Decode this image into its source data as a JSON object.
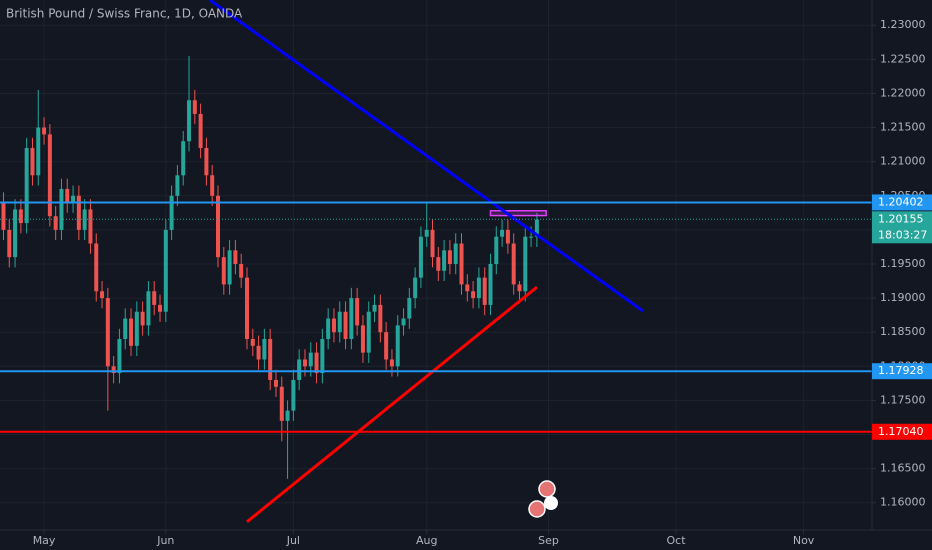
{
  "chart_data": {
    "type": "candlestick",
    "title": "British Pound / Swiss Franc, 1D, OANDA",
    "up_color": "#26a69a",
    "down_color": "#ef5350",
    "grid": true,
    "x": [
      -7,
      -6,
      -5,
      -4,
      -3,
      -2,
      -1,
      0,
      1,
      2,
      3,
      4,
      5,
      6,
      7,
      8,
      9,
      10,
      11,
      12,
      13,
      14,
      15,
      16,
      17,
      18,
      19,
      20,
      21,
      22,
      23,
      24,
      25,
      26,
      27,
      28,
      29,
      30,
      31,
      32,
      33,
      34,
      35,
      36,
      37,
      38,
      39,
      40,
      41,
      42,
      43,
      44,
      45,
      46,
      47,
      48,
      49,
      50,
      51,
      52,
      53,
      54,
      55,
      56,
      57,
      58,
      59,
      60,
      61,
      62,
      63,
      64,
      65,
      66,
      67,
      68,
      69,
      70,
      71,
      72,
      73,
      74,
      75,
      76,
      77,
      78,
      79,
      80,
      81,
      82,
      83,
      84,
      85
    ],
    "open": [
      1.204,
      1.2,
      1.196,
      1.203,
      1.201,
      1.212,
      1.208,
      1.215,
      1.214,
      1.202,
      1.2,
      1.206,
      1.204,
      1.205,
      1.2,
      1.203,
      1.198,
      1.191,
      1.19,
      1.18,
      1.179,
      1.184,
      1.187,
      1.183,
      1.188,
      1.186,
      1.191,
      1.189,
      1.188,
      1.2,
      1.205,
      1.208,
      1.213,
      1.219,
      1.217,
      1.212,
      1.208,
      1.205,
      1.196,
      1.192,
      1.197,
      1.195,
      1.193,
      1.184,
      1.183,
      1.181,
      1.184,
      1.178,
      1.177,
      1.172,
      1.1735,
      1.178,
      1.181,
      1.18,
      1.182,
      1.179,
      1.184,
      1.187,
      1.185,
      1.188,
      1.184,
      1.19,
      1.186,
      1.182,
      1.188,
      1.189,
      1.185,
      1.181,
      1.18,
      1.186,
      1.187,
      1.19,
      1.193,
      1.199,
      1.2,
      1.196,
      1.194,
      1.197,
      1.195,
      1.198,
      1.192,
      1.191,
      1.19,
      1.193,
      1.189,
      1.195,
      1.199,
      1.2,
      1.198,
      1.192,
      1.191,
      1.199,
      1.199
    ],
    "high": [
      1.2055,
      1.2015,
      1.2045,
      1.2045,
      1.2135,
      1.2135,
      1.2205,
      1.2165,
      1.2155,
      1.2035,
      1.2075,
      1.2075,
      1.2065,
      1.2065,
      1.2045,
      1.2045,
      1.1995,
      1.1925,
      1.1915,
      1.1815,
      1.1855,
      1.1885,
      1.1885,
      1.1895,
      1.1895,
      1.1925,
      1.1925,
      1.1905,
      1.2015,
      1.2065,
      1.2095,
      1.2145,
      1.2255,
      1.2205,
      1.2185,
      1.2135,
      1.2095,
      1.2065,
      1.1975,
      1.1985,
      1.1985,
      1.1965,
      1.1945,
      1.1855,
      1.1845,
      1.1855,
      1.1855,
      1.1795,
      1.1785,
      1.175,
      1.1795,
      1.1825,
      1.1825,
      1.1835,
      1.1835,
      1.1855,
      1.1885,
      1.1885,
      1.1895,
      1.1895,
      1.1915,
      1.1915,
      1.1875,
      1.1895,
      1.1905,
      1.1905,
      1.1865,
      1.1825,
      1.1875,
      1.1885,
      1.1915,
      1.1945,
      1.2005,
      1.204,
      1.2015,
      1.1975,
      1.1985,
      1.1985,
      1.1995,
      1.1995,
      1.1935,
      1.1925,
      1.1945,
      1.1945,
      1.1965,
      1.2005,
      1.2015,
      1.2015,
      1.1995,
      1.1925,
      1.2005,
      1.2005,
      1.2025
    ],
    "low": [
      1.1985,
      1.1945,
      1.1945,
      1.1995,
      1.1995,
      1.2065,
      1.2065,
      1.2125,
      1.2005,
      1.1985,
      1.1985,
      1.2025,
      1.2025,
      1.1985,
      1.1985,
      1.1965,
      1.1895,
      1.1885,
      1.1735,
      1.1775,
      1.1775,
      1.1825,
      1.1815,
      1.1815,
      1.1845,
      1.1845,
      1.1875,
      1.1865,
      1.1865,
      1.1985,
      1.2035,
      1.2065,
      1.2115,
      1.2155,
      1.2105,
      1.2065,
      1.2035,
      1.1945,
      1.1905,
      1.1905,
      1.1935,
      1.1915,
      1.1825,
      1.1815,
      1.1795,
      1.1795,
      1.1765,
      1.1755,
      1.169,
      1.1635,
      1.172,
      1.1765,
      1.1785,
      1.1785,
      1.1775,
      1.1775,
      1.1825,
      1.1835,
      1.1835,
      1.1825,
      1.1825,
      1.1845,
      1.1805,
      1.1805,
      1.1865,
      1.1835,
      1.1795,
      1.1785,
      1.1785,
      1.1845,
      1.1855,
      1.1885,
      1.1915,
      1.1975,
      1.1945,
      1.1925,
      1.1925,
      1.1935,
      1.1935,
      1.1905,
      1.1895,
      1.1885,
      1.1885,
      1.1875,
      1.1875,
      1.1935,
      1.1975,
      1.1965,
      1.1905,
      1.1895,
      1.1895,
      1.1975,
      1.1975
    ],
    "close": [
      1.2,
      1.196,
      1.203,
      1.201,
      1.212,
      1.208,
      1.215,
      1.214,
      1.202,
      1.2,
      1.206,
      1.204,
      1.205,
      1.2,
      1.203,
      1.198,
      1.191,
      1.19,
      1.18,
      1.179,
      1.184,
      1.187,
      1.183,
      1.188,
      1.186,
      1.191,
      1.189,
      1.188,
      1.2,
      1.205,
      1.208,
      1.213,
      1.219,
      1.217,
      1.212,
      1.208,
      1.205,
      1.196,
      1.192,
      1.197,
      1.195,
      1.193,
      1.184,
      1.183,
      1.181,
      1.184,
      1.178,
      1.177,
      1.172,
      1.1735,
      1.178,
      1.181,
      1.18,
      1.182,
      1.179,
      1.184,
      1.187,
      1.185,
      1.188,
      1.184,
      1.19,
      1.186,
      1.182,
      1.188,
      1.189,
      1.185,
      1.181,
      1.18,
      1.186,
      1.187,
      1.19,
      1.193,
      1.199,
      1.2,
      1.196,
      1.194,
      1.197,
      1.195,
      1.198,
      1.192,
      1.191,
      1.19,
      1.193,
      1.189,
      1.195,
      1.199,
      1.2,
      1.198,
      1.192,
      1.191,
      1.199,
      1.199,
      1.2015
    ],
    "xlim": [
      -7.6,
      142.8
    ],
    "xticks": [
      {
        "value": 0,
        "label": "May"
      },
      {
        "value": 21,
        "label": "Jun"
      },
      {
        "value": 43,
        "label": "Jul"
      },
      {
        "value": 66,
        "label": "Aug"
      },
      {
        "value": 87,
        "label": "Sep"
      },
      {
        "value": 109,
        "label": "Oct"
      },
      {
        "value": 131,
        "label": "Nov"
      }
    ],
    "ylim": [
      1.156,
      1.2337
    ],
    "yticks": [
      {
        "value": 1.16,
        "label": "1.16000"
      },
      {
        "value": 1.165,
        "label": "1.16500"
      },
      {
        "value": 1.17,
        "label": "1.17000"
      },
      {
        "value": 1.175,
        "label": "1.17500"
      },
      {
        "value": 1.18,
        "label": "1.18000"
      },
      {
        "value": 1.185,
        "label": "1.18500"
      },
      {
        "value": 1.19,
        "label": "1.19000"
      },
      {
        "value": 1.195,
        "label": "1.19500"
      },
      {
        "value": 1.2,
        "label": "1.20000"
      },
      {
        "value": 1.205,
        "label": "1.20500"
      },
      {
        "value": 1.21,
        "label": "1.21000"
      },
      {
        "value": 1.215,
        "label": "1.21500"
      },
      {
        "value": 1.22,
        "label": "1.22000"
      },
      {
        "value": 1.225,
        "label": "1.22500"
      },
      {
        "value": 1.23,
        "label": "1.23000"
      }
    ],
    "hlines": [
      {
        "value": 1.20402,
        "label": "1.20402",
        "color": "#2196f3"
      },
      {
        "value": 1.17928,
        "label": "1.17928",
        "color": "#2196f3"
      },
      {
        "value": 1.1704,
        "label": "1.17040",
        "color": "#ff0000"
      }
    ],
    "trendlines": [
      {
        "x": [
          28.6,
          103.3
        ],
        "y": [
          1.2337,
          1.1881
        ],
        "color": "#0000ff"
      },
      {
        "x": [
          35,
          85
        ],
        "y": [
          1.1572,
          1.1916
        ],
        "color": "#ff0000"
      }
    ],
    "rectangle": {
      "x": [
        77,
        86.6
      ],
      "y": [
        1.2021,
        1.2028
      ],
      "color": "#e040fb"
    },
    "last": {
      "value": 1.20155,
      "label": "1.20155",
      "countdown": "18:03:27",
      "color": "#26a69a"
    }
  }
}
